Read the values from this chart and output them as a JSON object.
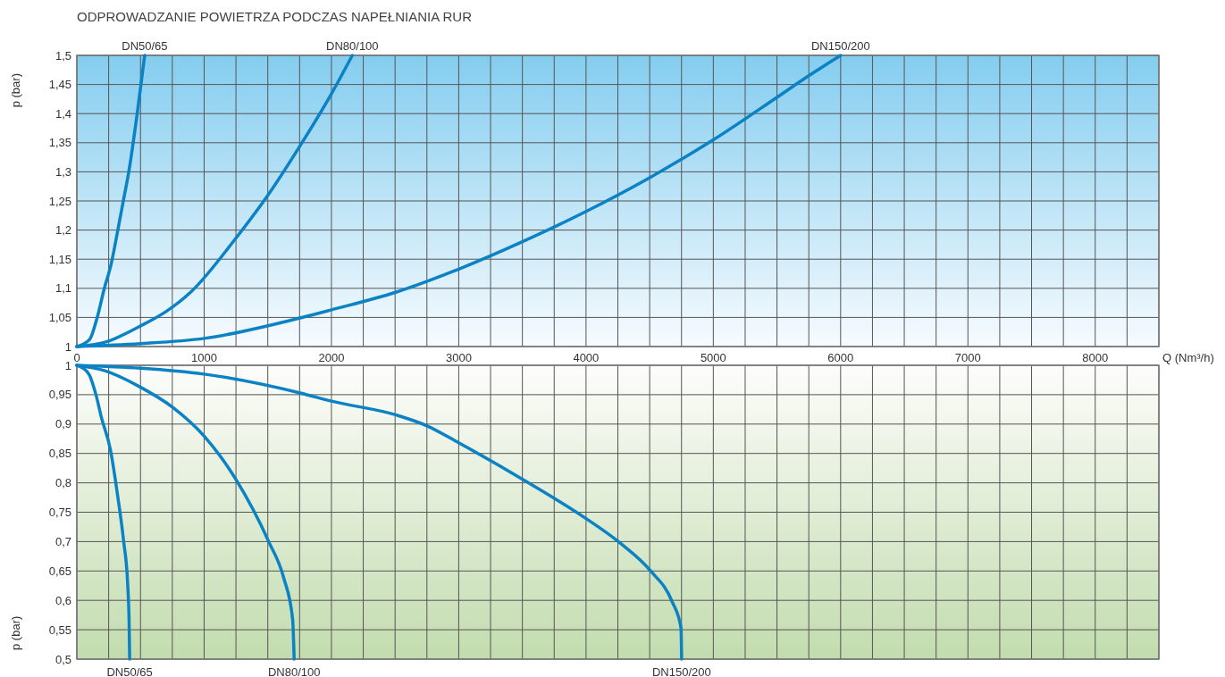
{
  "chart_data": [
    {
      "type": "line",
      "title": "ODPROWADZANIE POWIETRZA PODCZAS NAPEŁNIANIA RUR",
      "xlabel": "Q (Nm³/h)",
      "ylabel": "p (bar)",
      "xlim": [
        0,
        8500
      ],
      "ylim": [
        1,
        1.5
      ],
      "grid": true,
      "marker": "none",
      "line_style": "solid",
      "xticks": [
        0,
        {
          "value": 250,
          "label": null
        },
        {
          "value": 500,
          "label": null
        },
        {
          "value": 750,
          "label": null
        },
        1000,
        {
          "value": 1250,
          "label": null
        },
        {
          "value": 1500,
          "label": null
        },
        {
          "value": 1750,
          "label": null
        },
        2000,
        {
          "value": 2250,
          "label": null
        },
        {
          "value": 2500,
          "label": null
        },
        {
          "value": 2750,
          "label": null
        },
        3000,
        {
          "value": 3250,
          "label": null
        },
        {
          "value": 3500,
          "label": null
        },
        {
          "value": 3750,
          "label": null
        },
        4000,
        {
          "value": 4250,
          "label": null
        },
        {
          "value": 4500,
          "label": null
        },
        {
          "value": 4750,
          "label": null
        },
        5000,
        {
          "value": 5250,
          "label": null
        },
        {
          "value": 5500,
          "label": null
        },
        {
          "value": 5750,
          "label": null
        },
        6000,
        {
          "value": 6250,
          "label": null
        },
        {
          "value": 6500,
          "label": null
        },
        {
          "value": 6750,
          "label": null
        },
        7000,
        {
          "value": 7250,
          "label": null
        },
        {
          "value": 7500,
          "label": null
        },
        {
          "value": 7750,
          "label": null
        },
        8000,
        {
          "value": 8250,
          "label": null
        },
        {
          "value": 8500,
          "label": null
        }
      ],
      "yticks": [
        1,
        {
          "value": 1.05,
          "label": "1,05"
        },
        {
          "value": 1.1,
          "label": "1,1"
        },
        {
          "value": 1.15,
          "label": "1,15"
        },
        {
          "value": 1.2,
          "label": "1,2"
        },
        {
          "value": 1.25,
          "label": "1,25"
        },
        {
          "value": 1.3,
          "label": "1,3"
        },
        {
          "value": 1.35,
          "label": "1,35"
        },
        {
          "value": 1.4,
          "label": "1,4"
        },
        {
          "value": 1.45,
          "label": "1,45"
        },
        {
          "value": 1.5,
          "label": "1,5"
        }
      ],
      "series": [
        {
          "name": "DN50/65",
          "color": "#0a82c4",
          "x": [
            0,
            100,
            160,
            216,
            268,
            322,
            365,
            408,
            474,
            533
          ],
          "values": [
            1,
            1.012,
            1.05,
            1.1,
            1.14,
            1.2,
            1.25,
            1.3,
            1.4,
            1.5
          ]
        },
        {
          "name": "DN80/100",
          "color": "#0a82c4",
          "x": [
            0,
            216,
            497,
            700,
            897,
            1249,
            1495,
            1754,
            2000,
            2164
          ],
          "values": [
            1,
            1.007,
            1.035,
            1.06,
            1.094,
            1.186,
            1.258,
            1.345,
            1.434,
            1.5
          ]
        },
        {
          "name": "DN150/200",
          "color": "#0a82c4",
          "x": [
            0,
            500,
            1000,
            1754,
            2000,
            2516,
            3000,
            3500,
            4000,
            4500,
            5000,
            5500,
            5750,
            6000
          ],
          "values": [
            1,
            1.005,
            1.014,
            1.049,
            1.063,
            1.094,
            1.133,
            1.18,
            1.232,
            1.29,
            1.355,
            1.428,
            1.465,
            1.5
          ]
        }
      ]
    },
    {
      "type": "line",
      "ylabel": "p (bar)",
      "xlim": [
        0,
        8500
      ],
      "ylim": [
        0.5,
        1
      ],
      "grid": true,
      "marker": "none",
      "line_style": "solid",
      "tick_labels": "y",
      "xticks": [
        0,
        {
          "value": 250,
          "label": null
        },
        {
          "value": 500,
          "label": null
        },
        {
          "value": 750,
          "label": null
        },
        1000,
        {
          "value": 1250,
          "label": null
        },
        {
          "value": 1500,
          "label": null
        },
        {
          "value": 1750,
          "label": null
        },
        2000,
        {
          "value": 2250,
          "label": null
        },
        {
          "value": 2500,
          "label": null
        },
        {
          "value": 2750,
          "label": null
        },
        3000,
        {
          "value": 3250,
          "label": null
        },
        {
          "value": 3500,
          "label": null
        },
        {
          "value": 3750,
          "label": null
        },
        4000,
        {
          "value": 4250,
          "label": null
        },
        {
          "value": 4500,
          "label": null
        },
        {
          "value": 4750,
          "label": null
        },
        5000,
        {
          "value": 5250,
          "label": null
        },
        {
          "value": 5500,
          "label": null
        },
        {
          "value": 5750,
          "label": null
        },
        6000,
        {
          "value": 6250,
          "label": null
        },
        {
          "value": 6500,
          "label": null
        },
        {
          "value": 6750,
          "label": null
        },
        7000,
        {
          "value": 7250,
          "label": null
        },
        {
          "value": 7500,
          "label": null
        },
        {
          "value": 7750,
          "label": null
        },
        8000,
        {
          "value": 8250,
          "label": null
        },
        {
          "value": 8500,
          "label": null
        }
      ],
      "yticks": [
        {
          "value": 0.5,
          "label": "0,5"
        },
        {
          "value": 0.55,
          "label": "0,55"
        },
        {
          "value": 0.6,
          "label": "0,6"
        },
        {
          "value": 0.65,
          "label": "0,65"
        },
        {
          "value": 0.7,
          "label": "0,7"
        },
        {
          "value": 0.75,
          "label": "0,75"
        },
        {
          "value": 0.8,
          "label": "0,8"
        },
        {
          "value": 0.85,
          "label": "0,85"
        },
        {
          "value": 0.9,
          "label": "0,9"
        },
        {
          "value": 0.95,
          "label": "0,95"
        },
        1
      ],
      "series": [
        {
          "name": "DN50/65",
          "color": "#0a82c4",
          "x": [
            0,
            50,
            100,
            150,
            192,
            263,
            322,
            368,
            399,
            411,
            415
          ],
          "values": [
            1,
            0.995,
            0.983,
            0.95,
            0.912,
            0.857,
            0.776,
            0.7,
            0.629,
            0.558,
            0.5
          ]
        },
        {
          "name": "DN80/100",
          "color": "#0a82c4",
          "x": [
            0,
            216,
            498,
            756,
            1002,
            1249,
            1507,
            1624,
            1695,
            1707
          ],
          "values": [
            1,
            0.991,
            0.963,
            0.928,
            0.879,
            0.806,
            0.7,
            0.639,
            0.568,
            0.5
          ]
        },
        {
          "name": "DN150/200",
          "color": "#0a82c4",
          "x": [
            0,
            500,
            1000,
            1754,
            2000,
            2516,
            2751,
            3009,
            3502,
            3995,
            4254,
            4512,
            4676,
            4746,
            4751
          ],
          "values": [
            1,
            0.995,
            0.985,
            0.953,
            0.939,
            0.915,
            0.897,
            0.867,
            0.806,
            0.74,
            0.7,
            0.649,
            0.598,
            0.553,
            0.5
          ]
        }
      ]
    }
  ]
}
